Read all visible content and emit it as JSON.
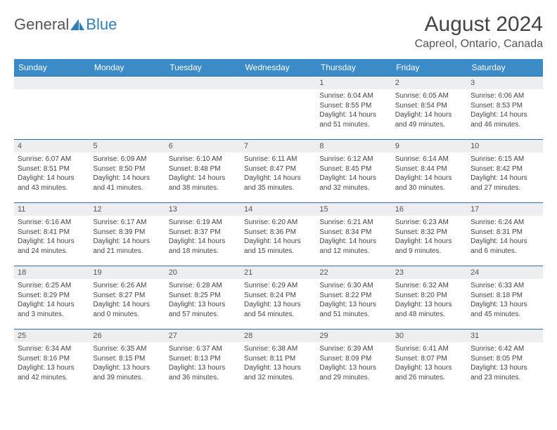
{
  "brand": {
    "part1": "General",
    "part2": "Blue"
  },
  "title": "August 2024",
  "location": "Capreol, Ontario, Canada",
  "colors": {
    "header_bg": "#3b8bc8",
    "header_text": "#ffffff",
    "row_border": "#2f6fa8",
    "daynum_bg": "#eceef0",
    "text": "#444444",
    "brand_blue": "#2f7fbf"
  },
  "dayNames": [
    "Sunday",
    "Monday",
    "Tuesday",
    "Wednesday",
    "Thursday",
    "Friday",
    "Saturday"
  ],
  "weeks": [
    [
      null,
      null,
      null,
      null,
      {
        "n": "1",
        "sr": "6:04 AM",
        "ss": "8:55 PM",
        "dl": "14 hours and 51 minutes."
      },
      {
        "n": "2",
        "sr": "6:05 AM",
        "ss": "8:54 PM",
        "dl": "14 hours and 49 minutes."
      },
      {
        "n": "3",
        "sr": "6:06 AM",
        "ss": "8:53 PM",
        "dl": "14 hours and 46 minutes."
      }
    ],
    [
      {
        "n": "4",
        "sr": "6:07 AM",
        "ss": "8:51 PM",
        "dl": "14 hours and 43 minutes."
      },
      {
        "n": "5",
        "sr": "6:09 AM",
        "ss": "8:50 PM",
        "dl": "14 hours and 41 minutes."
      },
      {
        "n": "6",
        "sr": "6:10 AM",
        "ss": "8:48 PM",
        "dl": "14 hours and 38 minutes."
      },
      {
        "n": "7",
        "sr": "6:11 AM",
        "ss": "8:47 PM",
        "dl": "14 hours and 35 minutes."
      },
      {
        "n": "8",
        "sr": "6:12 AM",
        "ss": "8:45 PM",
        "dl": "14 hours and 32 minutes."
      },
      {
        "n": "9",
        "sr": "6:14 AM",
        "ss": "8:44 PM",
        "dl": "14 hours and 30 minutes."
      },
      {
        "n": "10",
        "sr": "6:15 AM",
        "ss": "8:42 PM",
        "dl": "14 hours and 27 minutes."
      }
    ],
    [
      {
        "n": "11",
        "sr": "6:16 AM",
        "ss": "8:41 PM",
        "dl": "14 hours and 24 minutes."
      },
      {
        "n": "12",
        "sr": "6:17 AM",
        "ss": "8:39 PM",
        "dl": "14 hours and 21 minutes."
      },
      {
        "n": "13",
        "sr": "6:19 AM",
        "ss": "8:37 PM",
        "dl": "14 hours and 18 minutes."
      },
      {
        "n": "14",
        "sr": "6:20 AM",
        "ss": "8:36 PM",
        "dl": "14 hours and 15 minutes."
      },
      {
        "n": "15",
        "sr": "6:21 AM",
        "ss": "8:34 PM",
        "dl": "14 hours and 12 minutes."
      },
      {
        "n": "16",
        "sr": "6:23 AM",
        "ss": "8:32 PM",
        "dl": "14 hours and 9 minutes."
      },
      {
        "n": "17",
        "sr": "6:24 AM",
        "ss": "8:31 PM",
        "dl": "14 hours and 6 minutes."
      }
    ],
    [
      {
        "n": "18",
        "sr": "6:25 AM",
        "ss": "8:29 PM",
        "dl": "14 hours and 3 minutes."
      },
      {
        "n": "19",
        "sr": "6:26 AM",
        "ss": "8:27 PM",
        "dl": "14 hours and 0 minutes."
      },
      {
        "n": "20",
        "sr": "6:28 AM",
        "ss": "8:25 PM",
        "dl": "13 hours and 57 minutes."
      },
      {
        "n": "21",
        "sr": "6:29 AM",
        "ss": "8:24 PM",
        "dl": "13 hours and 54 minutes."
      },
      {
        "n": "22",
        "sr": "6:30 AM",
        "ss": "8:22 PM",
        "dl": "13 hours and 51 minutes."
      },
      {
        "n": "23",
        "sr": "6:32 AM",
        "ss": "8:20 PM",
        "dl": "13 hours and 48 minutes."
      },
      {
        "n": "24",
        "sr": "6:33 AM",
        "ss": "8:18 PM",
        "dl": "13 hours and 45 minutes."
      }
    ],
    [
      {
        "n": "25",
        "sr": "6:34 AM",
        "ss": "8:16 PM",
        "dl": "13 hours and 42 minutes."
      },
      {
        "n": "26",
        "sr": "6:35 AM",
        "ss": "8:15 PM",
        "dl": "13 hours and 39 minutes."
      },
      {
        "n": "27",
        "sr": "6:37 AM",
        "ss": "8:13 PM",
        "dl": "13 hours and 36 minutes."
      },
      {
        "n": "28",
        "sr": "6:38 AM",
        "ss": "8:11 PM",
        "dl": "13 hours and 32 minutes."
      },
      {
        "n": "29",
        "sr": "6:39 AM",
        "ss": "8:09 PM",
        "dl": "13 hours and 29 minutes."
      },
      {
        "n": "30",
        "sr": "6:41 AM",
        "ss": "8:07 PM",
        "dl": "13 hours and 26 minutes."
      },
      {
        "n": "31",
        "sr": "6:42 AM",
        "ss": "8:05 PM",
        "dl": "13 hours and 23 minutes."
      }
    ]
  ],
  "labels": {
    "sunrise": "Sunrise: ",
    "sunset": "Sunset: ",
    "daylight": "Daylight: "
  }
}
